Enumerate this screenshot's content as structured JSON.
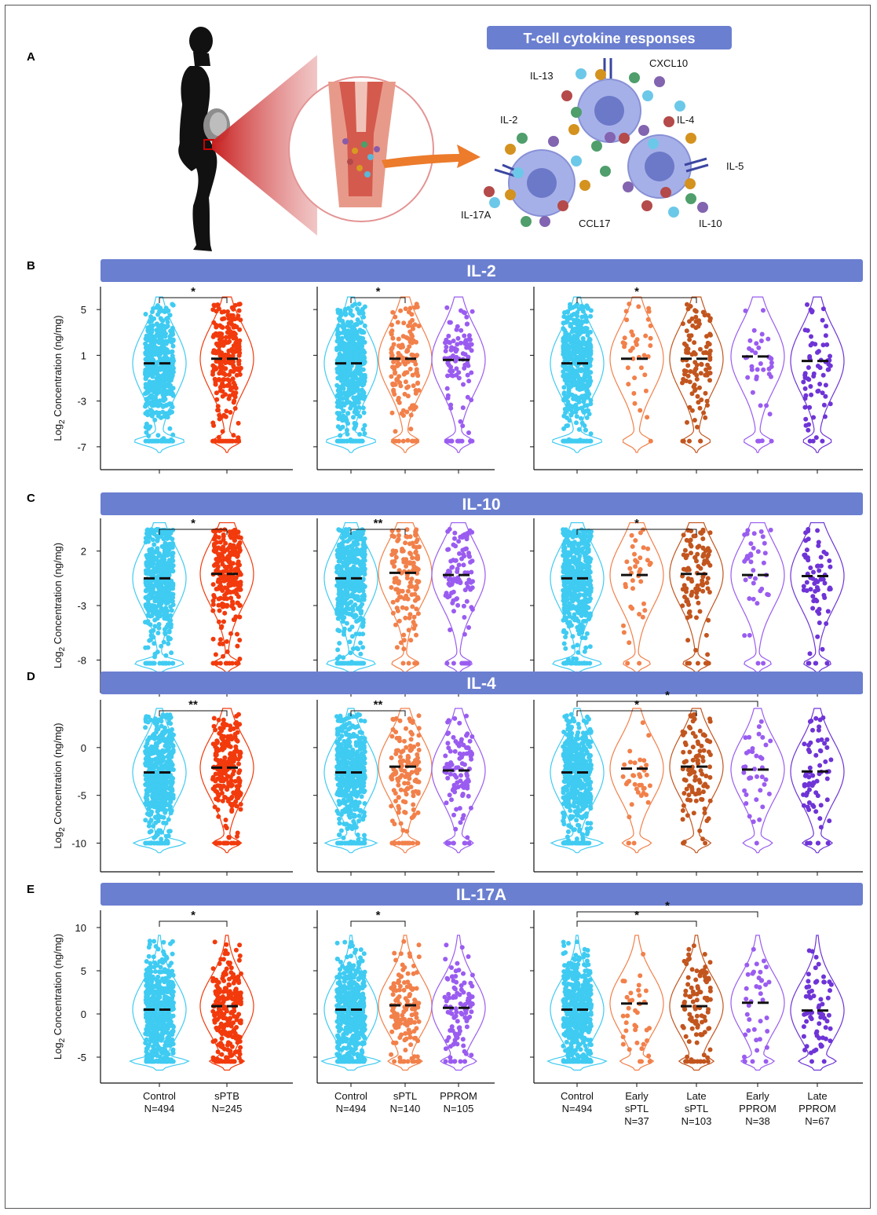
{
  "panel_A": {
    "label": "A",
    "banner": "T-cell cytokine responses",
    "cytokines": [
      "IL-13",
      "CXCL10",
      "IL-2",
      "IL-4",
      "IL-5",
      "IL-17A",
      "CCL17",
      "IL-10"
    ]
  },
  "y_axis_label_parts": {
    "prefix": "Log",
    "sub": "2",
    "suffix": " Concentration (ng/mg)"
  },
  "groups": [
    {
      "name": "Control",
      "n": "N=494",
      "color": "#3FCBF2"
    },
    {
      "name": "sPTB",
      "n": "N=245",
      "color": "#F23A0C"
    },
    {
      "name": "sPTL",
      "n": "N=140",
      "color": "#F2804A"
    },
    {
      "name": "PPROM",
      "n": "N=105",
      "color": "#9A5CF0"
    },
    {
      "name": "Early sPTL",
      "n": "N=37",
      "color": "#F2804A"
    },
    {
      "name": "Late sPTL",
      "n": "N=103",
      "color": "#C2551E"
    },
    {
      "name": "Early PPROM",
      "n": "N=38",
      "color": "#9A5CF0"
    },
    {
      "name": "Late PPROM",
      "n": "N=67",
      "color": "#6E34D6"
    }
  ],
  "x_labels": {
    "sub1": [
      [
        "Control",
        "N=494"
      ],
      [
        "sPTB",
        "N=245"
      ]
    ],
    "sub2": [
      [
        "Control",
        "N=494"
      ],
      [
        "sPTL",
        "N=140"
      ],
      [
        "PPROM",
        "N=105"
      ]
    ],
    "sub3": [
      [
        "Control",
        "N=494"
      ],
      [
        "Early",
        "sPTL",
        "N=37"
      ],
      [
        "Late",
        "sPTL",
        "N=103"
      ],
      [
        "Early",
        "PPROM",
        "N=38"
      ],
      [
        "Late",
        "PPROM",
        "N=67"
      ]
    ]
  },
  "chart_data": [
    {
      "type": "violin",
      "panel": "B",
      "title": "IL-2",
      "ylabel": "Log2 Concentration (ng/mg)",
      "yticks": [
        5,
        1,
        -3,
        -7
      ],
      "ylim": [
        -9,
        7
      ],
      "medians": {
        "sub1": [
          0.3,
          0.7
        ],
        "sub2": [
          0.3,
          0.7,
          0.6
        ],
        "sub3": [
          0.3,
          0.7,
          0.7,
          0.9,
          0.5
        ]
      },
      "data_max": 5.5,
      "data_min": -6.5,
      "significance": [
        {
          "sub": 1,
          "from": 0,
          "to": 1,
          "level": 0,
          "stars": "*"
        },
        {
          "sub": 2,
          "from": 0,
          "to": 1,
          "level": 0,
          "stars": "*"
        },
        {
          "sub": 3,
          "from": 0,
          "to": 2,
          "level": 0,
          "stars": "*"
        }
      ]
    },
    {
      "type": "violin",
      "panel": "C",
      "title": "IL-10",
      "ylabel": "Log2 Concentration (ng/mg)",
      "yticks": [
        2,
        -3,
        -8
      ],
      "ylim": [
        -11,
        5
      ],
      "medians": {
        "sub1": [
          -0.5,
          -0.1
        ],
        "sub2": [
          -0.5,
          0.0,
          -0.2
        ],
        "sub3": [
          -0.5,
          -0.2,
          -0.1,
          -0.2,
          -0.3
        ]
      },
      "data_max": 4.0,
      "data_min": -8.3,
      "significance": [
        {
          "sub": 1,
          "from": 0,
          "to": 1,
          "level": 0,
          "stars": "*"
        },
        {
          "sub": 2,
          "from": 0,
          "to": 1,
          "level": 0,
          "stars": "**"
        },
        {
          "sub": 3,
          "from": 0,
          "to": 2,
          "level": 0,
          "stars": "*"
        }
      ]
    },
    {
      "type": "violin",
      "panel": "D",
      "title": "IL-4",
      "ylabel": "Log2 Concentration (ng/mg)",
      "yticks": [
        0,
        -5,
        -10
      ],
      "ylim": [
        -13,
        5
      ],
      "medians": {
        "sub1": [
          -2.6,
          -2.1
        ],
        "sub2": [
          -2.6,
          -2.0,
          -2.4
        ],
        "sub3": [
          -2.6,
          -2.2,
          -2.0,
          -2.3,
          -2.5
        ]
      },
      "data_max": 3.5,
      "data_min": -10.0,
      "significance": [
        {
          "sub": 1,
          "from": 0,
          "to": 1,
          "level": 0,
          "stars": "**"
        },
        {
          "sub": 2,
          "from": 0,
          "to": 1,
          "level": 0,
          "stars": "**"
        },
        {
          "sub": 3,
          "from": 0,
          "to": 2,
          "level": 0,
          "stars": "*"
        },
        {
          "sub": 3,
          "from": 0,
          "to": 3,
          "level": 1,
          "stars": "*"
        }
      ]
    },
    {
      "type": "violin",
      "panel": "E",
      "title": "IL-17A",
      "ylabel": "Log2 Concentration (ng/mg)",
      "yticks": [
        10,
        5,
        0,
        -5
      ],
      "ylim": [
        -8,
        12
      ],
      "medians": {
        "sub1": [
          0.5,
          0.9
        ],
        "sub2": [
          0.5,
          1.0,
          0.7
        ],
        "sub3": [
          0.5,
          1.2,
          0.9,
          1.3,
          0.4
        ]
      },
      "data_max": 8.5,
      "data_min": -5.5,
      "significance": [
        {
          "sub": 1,
          "from": 0,
          "to": 1,
          "level": 0,
          "stars": "*"
        },
        {
          "sub": 2,
          "from": 0,
          "to": 1,
          "level": 0,
          "stars": "*"
        },
        {
          "sub": 3,
          "from": 0,
          "to": 2,
          "level": 0,
          "stars": "*"
        },
        {
          "sub": 3,
          "from": 0,
          "to": 3,
          "level": 1,
          "stars": "*"
        }
      ]
    }
  ]
}
